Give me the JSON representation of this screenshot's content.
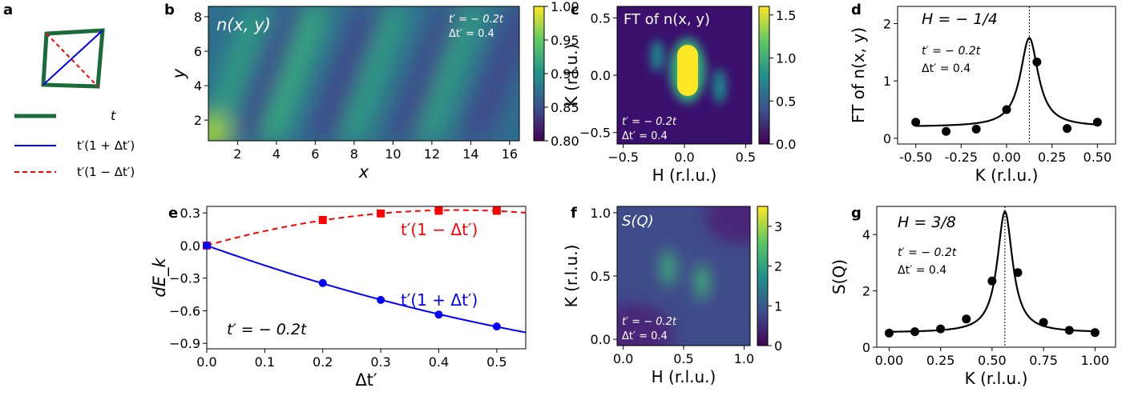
{
  "panel_letters": {
    "a": "a",
    "b": "b",
    "c": "c",
    "d": "d",
    "e": "e",
    "f": "f",
    "g": "g"
  },
  "legend_a": {
    "t": "t",
    "t_plus": "t′(1 + Δt′)",
    "t_minus": "t′(1 − Δt′)",
    "colors": {
      "t": "#1b6b3a",
      "plus": "#0000ff",
      "minus": "#ff0000"
    }
  },
  "annotations": {
    "tprime": "t′ = − 0.2t",
    "delta": "Δt′ = 0.4"
  },
  "chart_data": [
    {
      "id": "b",
      "type": "heatmap",
      "title": "n(x, y)",
      "xlabel": "x",
      "ylabel": "y",
      "xlim": [
        0.5,
        16.5
      ],
      "ylim": [
        0.8,
        8.6
      ],
      "xticks": [
        "2",
        "4",
        "6",
        "8",
        "10",
        "12",
        "14",
        "16"
      ],
      "xtick_values": [
        2,
        4,
        6,
        8,
        10,
        12,
        14,
        16
      ],
      "yticks": [
        "2",
        "4",
        "6",
        "8"
      ],
      "ytick_values": [
        2,
        4,
        6,
        8
      ],
      "colorbar": {
        "range": [
          0.8,
          1.0
        ],
        "ticks": [
          "0.80",
          "0.85",
          "0.90",
          "0.95",
          "1.00"
        ],
        "tick_values": [
          0.8,
          0.85,
          0.9,
          0.95,
          1.0
        ]
      }
    },
    {
      "id": "c",
      "type": "heatmap",
      "title": "FT of n(x, y)",
      "xlabel": "H (r.l.u.)",
      "ylabel": "K (r.l.u.)",
      "xlim": [
        -0.55,
        0.55
      ],
      "ylim": [
        -0.6,
        0.6
      ],
      "xticks": [
        "−0.5",
        "0.0",
        "0.5"
      ],
      "xtick_values": [
        -0.5,
        0,
        0.5
      ],
      "yticks": [
        "−0.5",
        "0.0",
        "0.5"
      ],
      "ytick_values": [
        -0.5,
        0,
        0.5
      ],
      "colorbar": {
        "range": [
          0.0,
          1.6
        ],
        "ticks": [
          "0.0",
          "0.5",
          "1.0",
          "1.5"
        ],
        "tick_values": [
          0,
          0.5,
          1.0,
          1.5
        ]
      }
    },
    {
      "id": "d",
      "type": "scatter",
      "title": "H = − 1/4",
      "xlabel": "K (r.l.u.)",
      "ylabel": "FT of n(x, y)",
      "xlim": [
        -0.6,
        0.6
      ],
      "ylim": [
        -0.1,
        2.3
      ],
      "xticks": [
        "-0.50",
        "-0.25",
        "0.00",
        "0.25",
        "0.50"
      ],
      "xtick_values": [
        -0.5,
        -0.25,
        0,
        0.25,
        0.5
      ],
      "yticks": [
        "0",
        "1",
        "2"
      ],
      "ytick_values": [
        0,
        1,
        2
      ],
      "points": [
        [
          -0.5,
          0.28
        ],
        [
          -0.333,
          0.12
        ],
        [
          -0.167,
          0.16
        ],
        [
          0.0,
          0.5
        ],
        [
          0.167,
          1.33
        ],
        [
          0.333,
          0.17
        ],
        [
          0.5,
          0.28
        ]
      ],
      "fit": {
        "type": "lorentzian",
        "center": 0.125,
        "amplitude": 1.55,
        "width": 0.06,
        "background": 0.2
      },
      "vline": 0.125
    },
    {
      "id": "e",
      "type": "line",
      "xlabel": "Δt′",
      "ylabel": "dE_k",
      "xlim": [
        0.0,
        0.55
      ],
      "ylim": [
        -0.95,
        0.36
      ],
      "xticks": [
        "0.0",
        "0.1",
        "0.2",
        "0.3",
        "0.4",
        "0.5"
      ],
      "xtick_values": [
        0,
        0.1,
        0.2,
        0.3,
        0.4,
        0.5
      ],
      "yticks": [
        "0.3",
        "0.0",
        "−0.3",
        "−0.6",
        "−0.9"
      ],
      "ytick_values": [
        0.3,
        0,
        -0.3,
        -0.6,
        -0.9
      ],
      "series": [
        {
          "name": "t′(1 − Δt′)",
          "style": "dashed",
          "marker": "square",
          "color": "#ff0000",
          "x": [
            0.0,
            0.2,
            0.3,
            0.4,
            0.5
          ],
          "y": [
            0.0,
            0.235,
            0.295,
            0.32,
            0.32
          ]
        },
        {
          "name": "t′(1 + Δt′)",
          "style": "solid",
          "marker": "circle",
          "color": "#0000ff",
          "x": [
            0.0,
            0.2,
            0.3,
            0.4,
            0.5
          ],
          "y": [
            0.0,
            -0.345,
            -0.5,
            -0.635,
            -0.745
          ]
        }
      ],
      "annotation": "t′ = − 0.2t"
    },
    {
      "id": "f",
      "type": "heatmap",
      "title": "S(Q)",
      "xlabel": "H (r.l.u.)",
      "ylabel": "K (r.l.u.)",
      "xlim": [
        -0.05,
        1.05
      ],
      "ylim": [
        -0.05,
        1.05
      ],
      "xticks": [
        "0.0",
        "0.5",
        "1.0"
      ],
      "xtick_values": [
        0,
        0.5,
        1.0
      ],
      "yticks": [
        "0.0",
        "0.5",
        "1.0"
      ],
      "ytick_values": [
        0,
        0.5,
        1.0
      ],
      "colorbar": {
        "range": [
          0,
          3.5
        ],
        "ticks": [
          "0",
          "1",
          "2",
          "3"
        ],
        "tick_values": [
          0,
          1,
          2,
          3
        ]
      }
    },
    {
      "id": "g",
      "type": "scatter",
      "title": "H = 3/8",
      "xlabel": "K (r.l.u.)",
      "ylabel": "S(Q)",
      "xlim": [
        -0.06,
        1.1
      ],
      "ylim": [
        0,
        5.0
      ],
      "xticks": [
        "0.00",
        "0.25",
        "0.50",
        "0.75",
        "1.00"
      ],
      "xtick_values": [
        0,
        0.25,
        0.5,
        0.75,
        1.0
      ],
      "yticks": [
        "0",
        "2",
        "4"
      ],
      "ytick_values": [
        0,
        2,
        4
      ],
      "points": [
        [
          0.0,
          0.5
        ],
        [
          0.125,
          0.55
        ],
        [
          0.25,
          0.65
        ],
        [
          0.375,
          1.0
        ],
        [
          0.5,
          2.35
        ],
        [
          0.625,
          2.65
        ],
        [
          0.75,
          0.88
        ],
        [
          0.875,
          0.6
        ],
        [
          1.0,
          0.52
        ]
      ],
      "fit": {
        "type": "lorentzian",
        "center": 0.5625,
        "amplitude": 4.3,
        "width": 0.045,
        "background": 0.52
      },
      "vline": 0.5625
    }
  ]
}
